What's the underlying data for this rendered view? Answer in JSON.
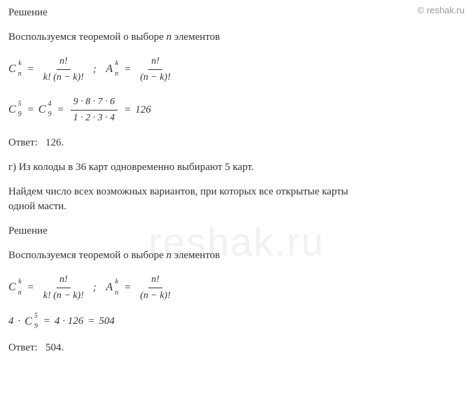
{
  "watermark": {
    "small": "© reshak.ru",
    "big": "reshak.ru"
  },
  "section1": {
    "heading": "Решение",
    "theorem": "Воспользуемся теоремой о выборе n элементов",
    "formula_c": {
      "base": "C",
      "sup": "k",
      "sub": "n",
      "num": "n!",
      "den": "k! (n − k)!"
    },
    "formula_a": {
      "base": "A",
      "sup": "k",
      "sub": "n",
      "num": "n!",
      "den": "(n − k)!"
    },
    "calc": {
      "left": {
        "base": "C",
        "sup": "5",
        "sub": "9"
      },
      "mid": {
        "base": "C",
        "sup": "4",
        "sub": "9"
      },
      "num": "9 · 8 · 7 · 6",
      "den": "1 · 2 · 3 · 4",
      "result": "126"
    },
    "answer_label": "Ответ:",
    "answer_value": "126."
  },
  "section2": {
    "problem_label": "г)",
    "problem_text": "Из колоды в 36 карт одновременно выбирают 5 карт.",
    "find_text1": "Найдем число всех возможных вариантов, при которых все открытые карты",
    "find_text2": "одной масти.",
    "heading": "Решение",
    "theorem": "Воспользуемся теоремой о выборе n элементов",
    "formula_c": {
      "base": "C",
      "sup": "k",
      "sub": "n",
      "num": "n!",
      "den": "k! (n − k)!"
    },
    "formula_a": {
      "base": "A",
      "sup": "k",
      "sub": "n",
      "num": "n!",
      "den": "(n − k)!"
    },
    "calc": {
      "mult": "4",
      "sym": {
        "base": "C",
        "sup": "5",
        "sub": "9"
      },
      "rhs1": "4 · 126",
      "result": "504"
    },
    "answer_label": "Ответ:",
    "answer_value": "504."
  }
}
